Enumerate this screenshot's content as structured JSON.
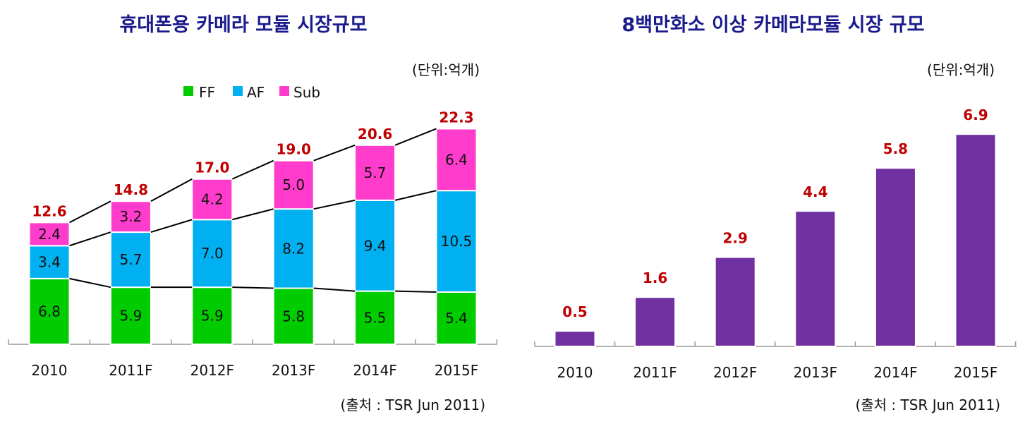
{
  "chart_data": [
    {
      "type": "bar",
      "stacked": true,
      "title": "휴대폰용 카메라 모듈 시장규모",
      "unit": "(단위:억개)",
      "source": "(출처 : TSR Jun 2011)",
      "categories": [
        "2010",
        "2011F",
        "2012F",
        "2013F",
        "2014F",
        "2015F"
      ],
      "series": [
        {
          "name": "FF",
          "color": "#00cc00",
          "values": [
            6.8,
            5.9,
            5.9,
            5.8,
            5.5,
            5.4
          ]
        },
        {
          "name": "AF",
          "color": "#00b0f0",
          "values": [
            3.4,
            5.7,
            7.0,
            8.2,
            9.4,
            10.5
          ]
        },
        {
          "name": "Sub",
          "color": "#ff3ccc",
          "values": [
            2.4,
            3.2,
            4.2,
            5.0,
            5.7,
            6.4
          ]
        }
      ],
      "totals": [
        "12.6",
        "14.8",
        "17.0",
        "19.0",
        "20.6",
        "22.3"
      ],
      "legend": "top",
      "series_lines": true,
      "grid": false,
      "ylim": [
        0,
        23
      ]
    },
    {
      "type": "bar",
      "title": "8백만화소 이상 카메라모듈 시장 규모",
      "unit": "(단위:억개)",
      "source": "(출처 : TSR Jun 2011)",
      "categories": [
        "2010",
        "2011F",
        "2012F",
        "2013F",
        "2014F",
        "2015F"
      ],
      "values": [
        0.5,
        1.6,
        2.9,
        4.4,
        5.8,
        6.9
      ],
      "labels": [
        "0.5",
        "1.6",
        "2.9",
        "4.4",
        "5.8",
        "6.9"
      ],
      "color": "#7030a0",
      "grid": false,
      "ylim": [
        0,
        7
      ]
    }
  ],
  "colors": {
    "total_label": "#c00000",
    "title": "#1a1a8c"
  }
}
